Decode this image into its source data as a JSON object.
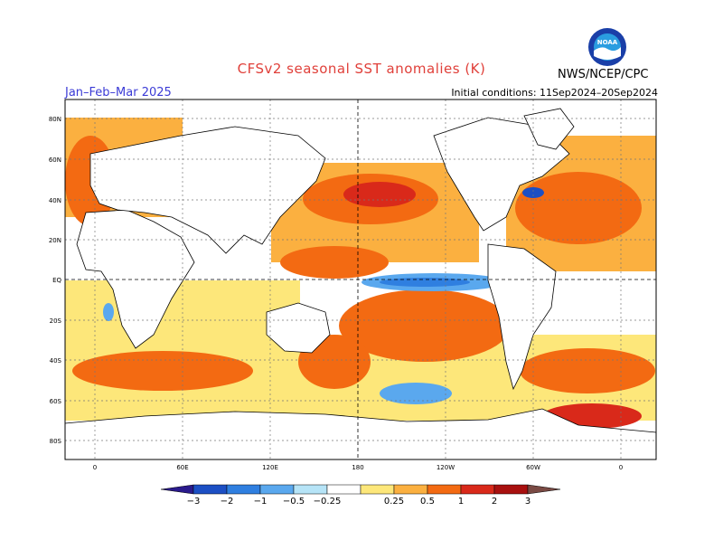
{
  "header": {
    "title": "CFSv2 seasonal SST anomalies (K)",
    "period": "Jan–Feb–Mar 2025",
    "initial_conditions": "Initial conditions: 11Sep2024–20Sep2024",
    "agency": "NWS/NCEP/CPC",
    "logo_text": "NOAA"
  },
  "map": {
    "lat_labels": [
      "80N",
      "60N",
      "40N",
      "20N",
      "EQ",
      "20S",
      "40S",
      "60S",
      "80S"
    ],
    "lon_labels": [
      "0",
      "60E",
      "120E",
      "180",
      "120W",
      "60W",
      "0"
    ]
  },
  "colorbar": {
    "labels": [
      "−3",
      "−2",
      "−1",
      "−0.5",
      "−0.25",
      "0.25",
      "0.5",
      "1",
      "2",
      "3"
    ],
    "colors": [
      "#2a1a8c",
      "#1c4fc4",
      "#2f7fe0",
      "#5aa8ee",
      "#b6e4f7",
      "#ffffff",
      "#fde77a",
      "#fbb040",
      "#f36a12",
      "#d9291a",
      "#a8100f",
      "#7a4a44"
    ]
  }
}
